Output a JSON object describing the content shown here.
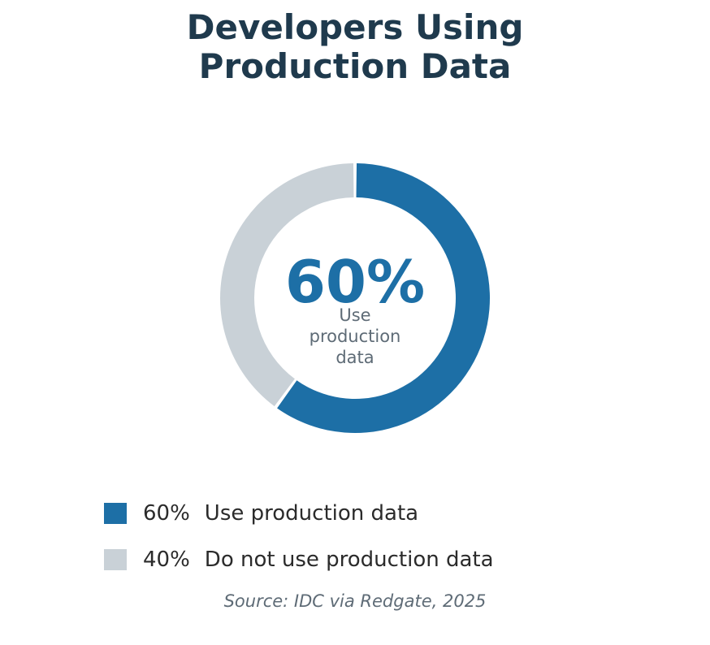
{
  "chart_data": {
    "type": "pie",
    "title_lines": [
      "Developers Using",
      "Production Data"
    ],
    "center": {
      "value": "60%",
      "label_lines": [
        "Use",
        "production",
        "data"
      ]
    },
    "slices": [
      {
        "pct_label": "60%",
        "label": "Use production data",
        "value": 60,
        "color": "#1d6fa6"
      },
      {
        "pct_label": "40%",
        "label": "Do not use production data",
        "value": 40,
        "color": "#c9d1d7"
      }
    ],
    "legend_position": "bottom-left",
    "source": "Source: IDC via Redgate, 2025"
  }
}
